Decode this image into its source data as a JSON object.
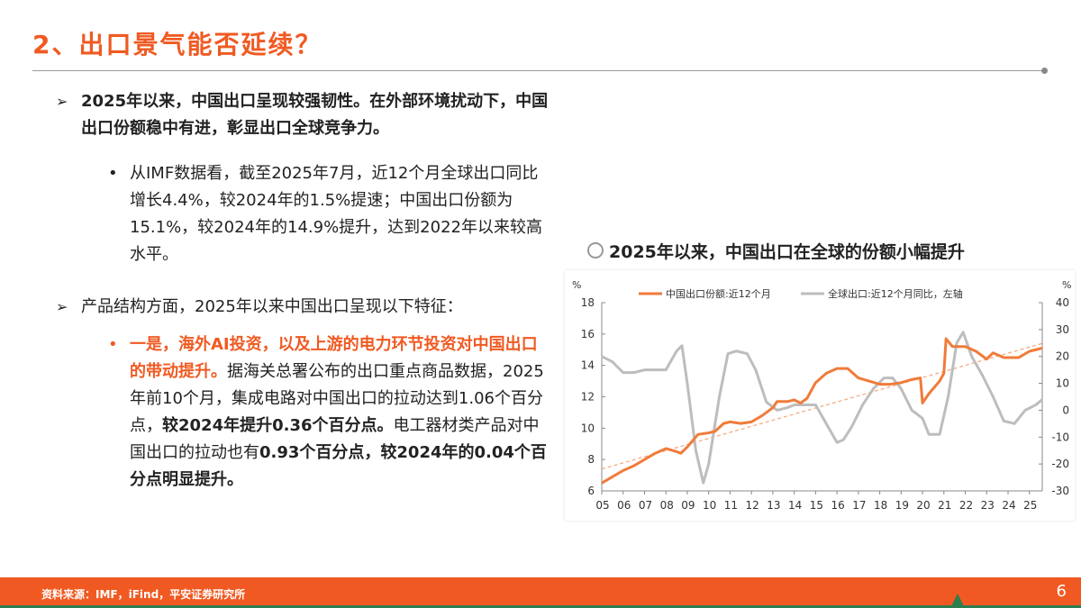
{
  "title": "2、出口景气能否延续？",
  "bullets": [
    {
      "marker": "➢",
      "parts": [
        {
          "t": "2025年以来，中国出口呈现较强韧性。在外部环境扰动下，中国出口份额稳中有进，彰显出口全球竞争力。",
          "s": "b"
        }
      ]
    },
    {
      "marker": "•",
      "parts": [
        {
          "t": "从IMF数据看，截至2025年7月，近12个月全球出口同比增长4.4%，较2024年的1.5%提速；中国出口份额为15.1%，较2024年的14.9%提升，达到2022年以来较高水平。",
          "s": ""
        }
      ]
    },
    {
      "marker": "➢",
      "parts": [
        {
          "t": "产品结构方面，2025年以来中国出口呈现以下特征：",
          "s": ""
        }
      ]
    },
    {
      "marker": "•",
      "parts": [
        {
          "t": "一是，海外AI投资，以及上游的电力环节投资对中国出口的带动提升。",
          "s": "or"
        },
        {
          "t": "据海关总署公布的出口重点商品数据，2025年前10个月，集成电路对中国出口的拉动达到1.06个百分点，",
          "s": ""
        },
        {
          "t": "较2024年提升0.36个百分点。",
          "s": "b"
        },
        {
          "t": "电工器材类产品对中国出口的拉动也有",
          "s": ""
        },
        {
          "t": "0.93个百分点，较2024年的0.04个百分点明显提升。",
          "s": "b"
        }
      ]
    }
  ],
  "chart_title": "2025年以来，中国出口在全球的份额小幅提升",
  "footer": {
    "source": "资料来源：IMF，iFind，平安证券研究所",
    "page": "6"
  },
  "colors": {
    "accent": "#f05a22",
    "china": "#f07b3a",
    "global": "#bdbdbd",
    "trend": "#f5a57a",
    "footer_line": "#2e7d4f"
  },
  "chart_data": {
    "type": "line",
    "left_unit": "%",
    "right_unit": "%",
    "ylim_left": [
      6,
      18
    ],
    "yticks_left": [
      6,
      8,
      10,
      12,
      14,
      16,
      18
    ],
    "ylim_right": [
      -30,
      40
    ],
    "yticks_right": [
      -30,
      -20,
      -10,
      0,
      10,
      20,
      30,
      40
    ],
    "xlim": [
      2005,
      2025.6
    ],
    "xticks": [
      "05",
      "06",
      "07",
      "08",
      "09",
      "10",
      "11",
      "12",
      "13",
      "14",
      "15",
      "16",
      "17",
      "18",
      "19",
      "20",
      "21",
      "22",
      "23",
      "24",
      "25"
    ],
    "legend_position": "top",
    "series": [
      {
        "name": "中国出口份额:近12个月",
        "axis": "left",
        "color": "#f07b3a",
        "points": [
          [
            2005.0,
            6.5
          ],
          [
            2005.5,
            6.9
          ],
          [
            2006.0,
            7.3
          ],
          [
            2006.5,
            7.6
          ],
          [
            2007.0,
            8.0
          ],
          [
            2007.5,
            8.4
          ],
          [
            2008.0,
            8.7
          ],
          [
            2008.5,
            8.5
          ],
          [
            2008.7,
            8.4
          ],
          [
            2009.0,
            8.8
          ],
          [
            2009.5,
            9.6
          ],
          [
            2010.0,
            9.7
          ],
          [
            2010.3,
            9.8
          ],
          [
            2010.7,
            10.3
          ],
          [
            2011.0,
            10.4
          ],
          [
            2011.5,
            10.3
          ],
          [
            2012.0,
            10.4
          ],
          [
            2012.5,
            10.8
          ],
          [
            2013.0,
            11.3
          ],
          [
            2013.2,
            11.7
          ],
          [
            2013.7,
            11.7
          ],
          [
            2014.0,
            11.8
          ],
          [
            2014.3,
            11.6
          ],
          [
            2014.6,
            11.9
          ],
          [
            2015.0,
            12.9
          ],
          [
            2015.5,
            13.5
          ],
          [
            2016.0,
            13.8
          ],
          [
            2016.5,
            13.8
          ],
          [
            2017.0,
            13.2
          ],
          [
            2017.5,
            13.0
          ],
          [
            2018.0,
            12.8
          ],
          [
            2018.5,
            12.8
          ],
          [
            2019.0,
            12.9
          ],
          [
            2019.5,
            13.1
          ],
          [
            2019.9,
            13.2
          ],
          [
            2020.0,
            11.6
          ],
          [
            2020.3,
            12.2
          ],
          [
            2020.8,
            13.0
          ],
          [
            2021.0,
            13.5
          ],
          [
            2021.1,
            15.7
          ],
          [
            2021.4,
            15.2
          ],
          [
            2022.0,
            15.2
          ],
          [
            2022.5,
            14.9
          ],
          [
            2023.0,
            14.4
          ],
          [
            2023.3,
            14.8
          ],
          [
            2023.8,
            14.5
          ],
          [
            2024.0,
            14.5
          ],
          [
            2024.5,
            14.5
          ],
          [
            2025.0,
            14.9
          ],
          [
            2025.3,
            15.0
          ],
          [
            2025.6,
            15.1
          ]
        ]
      },
      {
        "name": "全球出口:近12个月同比，左轴",
        "axis": "right",
        "color": "#bdbdbd",
        "points": [
          [
            2005.0,
            20
          ],
          [
            2005.5,
            18
          ],
          [
            2006.0,
            14
          ],
          [
            2006.5,
            14
          ],
          [
            2007.0,
            15
          ],
          [
            2007.5,
            15
          ],
          [
            2008.0,
            15
          ],
          [
            2008.5,
            22
          ],
          [
            2008.75,
            24
          ],
          [
            2009.0,
            10
          ],
          [
            2009.4,
            -15
          ],
          [
            2009.75,
            -27
          ],
          [
            2010.0,
            -20
          ],
          [
            2010.5,
            5
          ],
          [
            2010.9,
            21
          ],
          [
            2011.3,
            22
          ],
          [
            2011.8,
            21
          ],
          [
            2012.2,
            15
          ],
          [
            2012.7,
            3
          ],
          [
            2013.2,
            0
          ],
          [
            2013.7,
            1
          ],
          [
            2014.0,
            2
          ],
          [
            2014.5,
            2
          ],
          [
            2015.0,
            2
          ],
          [
            2015.5,
            -5
          ],
          [
            2016.0,
            -12
          ],
          [
            2016.3,
            -11
          ],
          [
            2016.7,
            -6
          ],
          [
            2017.2,
            2
          ],
          [
            2017.7,
            8
          ],
          [
            2018.2,
            12
          ],
          [
            2018.6,
            12
          ],
          [
            2019.0,
            8
          ],
          [
            2019.5,
            0
          ],
          [
            2020.0,
            -3
          ],
          [
            2020.3,
            -9
          ],
          [
            2020.8,
            -9
          ],
          [
            2021.2,
            5
          ],
          [
            2021.6,
            25
          ],
          [
            2021.9,
            29
          ],
          [
            2022.3,
            20
          ],
          [
            2022.8,
            13
          ],
          [
            2023.3,
            5
          ],
          [
            2023.8,
            -4
          ],
          [
            2024.3,
            -5
          ],
          [
            2024.8,
            0
          ],
          [
            2025.3,
            2
          ],
          [
            2025.6,
            4
          ]
        ]
      }
    ],
    "trendline": {
      "axis": "left",
      "points": [
        [
          2005.0,
          7.4
        ],
        [
          2025.6,
          15.4
        ]
      ]
    }
  }
}
